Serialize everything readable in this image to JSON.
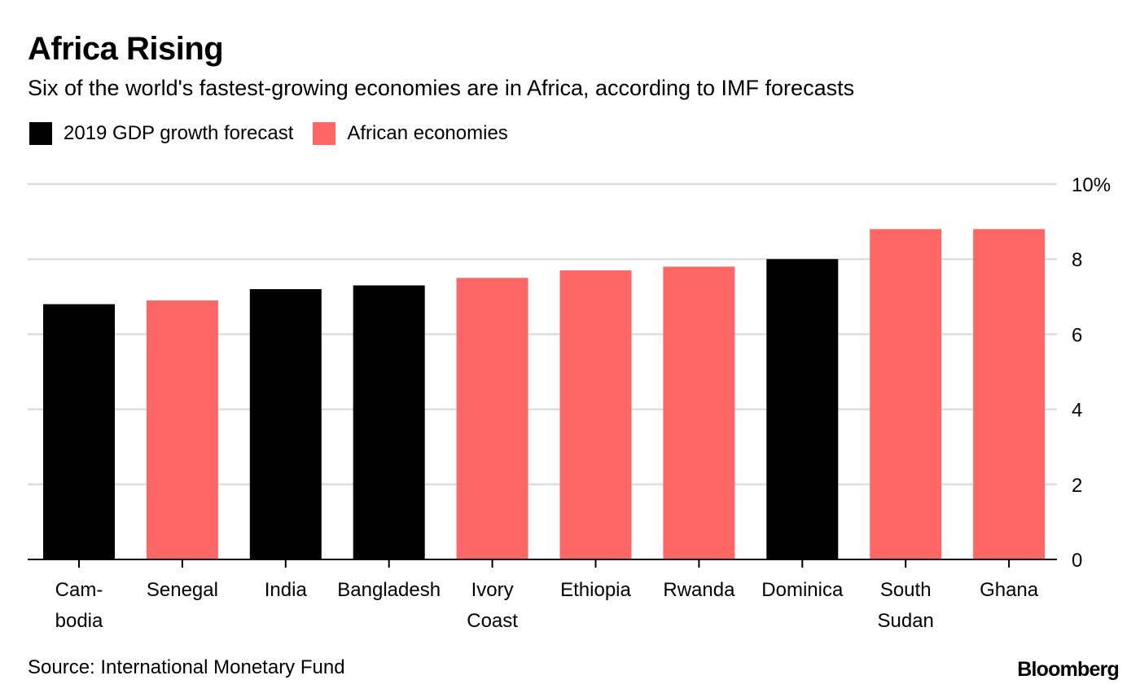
{
  "header": {
    "title": "Africa Rising",
    "subtitle": "Six of the world's fastest-growing economies are in Africa, according to IMF forecasts"
  },
  "legend": {
    "items": [
      {
        "label": "2019 GDP growth forecast",
        "color": "#000000"
      },
      {
        "label": "African economies",
        "color": "#ff6666"
      }
    ]
  },
  "colors": {
    "non_african": "#000000",
    "african": "#ff6666",
    "grid": "#dddddd",
    "axis": "#000000"
  },
  "chart_data": {
    "type": "bar",
    "title": "Africa Rising",
    "xlabel": "",
    "ylabel": "",
    "ylim": [
      0,
      10
    ],
    "yticks": [
      0,
      2,
      4,
      6,
      8,
      10
    ],
    "ytick_labels": [
      "0",
      "2",
      "4",
      "6",
      "8",
      "10%"
    ],
    "grid": true,
    "categories": [
      [
        "Cam-",
        "bodia"
      ],
      [
        "Senegal"
      ],
      [
        "India"
      ],
      [
        "Bangladesh"
      ],
      [
        "Ivory",
        "Coast"
      ],
      [
        "Ethiopia"
      ],
      [
        "Rwanda"
      ],
      [
        "Dominica"
      ],
      [
        "South",
        "Sudan"
      ],
      [
        "Ghana"
      ]
    ],
    "values": [
      6.8,
      6.9,
      7.2,
      7.3,
      7.5,
      7.7,
      7.8,
      8.0,
      8.8,
      8.8
    ],
    "african": [
      false,
      true,
      false,
      false,
      true,
      true,
      true,
      false,
      true,
      true
    ]
  },
  "footer": {
    "source": "Source: International Monetary Fund",
    "brand": "Bloomberg"
  }
}
